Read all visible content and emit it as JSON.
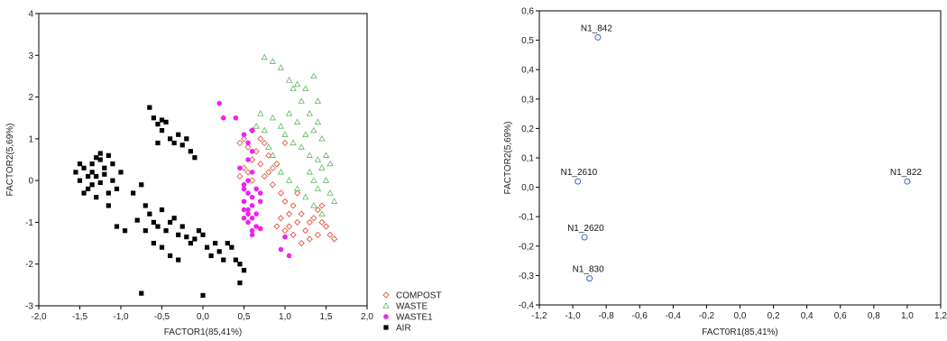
{
  "chart_data": [
    {
      "type": "scatter",
      "xlabel": "FACTOR1(85,41%)",
      "ylabel": "FACTOR2(5,69%)",
      "xlim": [
        -2.0,
        2.0
      ],
      "ylim": [
        -3,
        4
      ],
      "xticks": [
        "-2,0",
        "-1,5",
        "-1,0",
        "-0,5",
        "0,0",
        "0,5",
        "1,0",
        "1,5",
        "2,0"
      ],
      "yticks": [
        "-3",
        "-2",
        "-1",
        "0",
        "1",
        "2",
        "3",
        "4"
      ],
      "legend": {
        "position": "bottom-right-outside"
      },
      "series": [
        {
          "name": "COMPOST",
          "marker": "diamond-open",
          "color": "#e0452e",
          "points": [
            [
              0.45,
              0.9
            ],
            [
              0.5,
              1.0
            ],
            [
              0.55,
              0.8
            ],
            [
              0.6,
              1.2
            ],
            [
              0.65,
              0.7
            ],
            [
              0.7,
              1.0
            ],
            [
              0.75,
              0.9
            ],
            [
              0.8,
              0.6
            ],
            [
              0.5,
              0.3
            ],
            [
              0.55,
              0.2
            ],
            [
              0.6,
              0.5
            ],
            [
              0.7,
              0.4
            ],
            [
              0.8,
              0.2
            ],
            [
              0.85,
              -0.1
            ],
            [
              0.9,
              0.4
            ],
            [
              0.95,
              -0.3
            ],
            [
              1.0,
              -0.5
            ],
            [
              1.05,
              -0.8
            ],
            [
              1.1,
              -0.6
            ],
            [
              1.15,
              -1.0
            ],
            [
              1.2,
              -0.8
            ],
            [
              1.25,
              -1.2
            ],
            [
              1.3,
              -1.4
            ],
            [
              1.35,
              -0.9
            ],
            [
              1.4,
              -0.7
            ],
            [
              1.45,
              -1.0
            ],
            [
              1.5,
              -1.1
            ],
            [
              1.55,
              -1.3
            ],
            [
              1.6,
              -1.4
            ],
            [
              0.9,
              -1.1
            ],
            [
              1.0,
              -1.2
            ],
            [
              1.1,
              -1.3
            ],
            [
              1.2,
              -1.5
            ],
            [
              1.3,
              -1.0
            ],
            [
              1.4,
              -1.3
            ],
            [
              1.45,
              -0.6
            ],
            [
              1.0,
              0.9
            ],
            [
              0.45,
              0.1
            ],
            [
              0.6,
              0.0
            ],
            [
              0.75,
              0.1
            ],
            [
              0.95,
              -0.9
            ],
            [
              1.05,
              -1.1
            ],
            [
              0.85,
              0.3
            ],
            [
              1.15,
              -0.3
            ]
          ]
        },
        {
          "name": "WASTE",
          "marker": "triangle-open",
          "color": "#5fb85f",
          "points": [
            [
              0.75,
              2.95
            ],
            [
              0.85,
              2.85
            ],
            [
              0.95,
              2.7
            ],
            [
              1.05,
              2.4
            ],
            [
              1.1,
              2.2
            ],
            [
              1.15,
              2.3
            ],
            [
              1.25,
              2.2
            ],
            [
              1.35,
              2.5
            ],
            [
              1.4,
              1.9
            ],
            [
              1.2,
              1.9
            ],
            [
              1.3,
              1.6
            ],
            [
              1.4,
              1.4
            ],
            [
              1.05,
              1.6
            ],
            [
              0.95,
              1.3
            ],
            [
              0.85,
              1.5
            ],
            [
              0.75,
              1.2
            ],
            [
              0.7,
              1.6
            ],
            [
              0.65,
              1.3
            ],
            [
              1.0,
              1.1
            ],
            [
              1.1,
              0.9
            ],
            [
              1.2,
              0.8
            ],
            [
              1.3,
              0.6
            ],
            [
              1.4,
              0.5
            ],
            [
              1.45,
              0.3
            ],
            [
              1.5,
              0.0
            ],
            [
              1.55,
              -0.3
            ],
            [
              1.6,
              -0.5
            ],
            [
              1.45,
              -0.8
            ],
            [
              1.35,
              -0.6
            ],
            [
              1.25,
              -0.4
            ],
            [
              1.15,
              -0.2
            ],
            [
              1.05,
              0.0
            ],
            [
              0.95,
              0.2
            ],
            [
              0.85,
              0.6
            ],
            [
              0.8,
              0.8
            ],
            [
              1.3,
              0.2
            ],
            [
              1.35,
              0.0
            ],
            [
              1.4,
              -0.2
            ],
            [
              1.5,
              0.6
            ],
            [
              1.55,
              0.4
            ],
            [
              1.25,
              1.1
            ],
            [
              1.15,
              1.4
            ],
            [
              1.45,
              1.0
            ],
            [
              1.35,
              1.2
            ]
          ]
        },
        {
          "name": "WASTE1",
          "marker": "circle-filled",
          "color": "#ee22ee",
          "points": [
            [
              0.2,
              1.85
            ],
            [
              0.25,
              1.5
            ],
            [
              0.4,
              1.5
            ],
            [
              0.6,
              1.2
            ],
            [
              0.5,
              1.1
            ],
            [
              0.55,
              0.9
            ],
            [
              0.6,
              0.7
            ],
            [
              0.55,
              0.5
            ],
            [
              0.6,
              0.2
            ],
            [
              0.55,
              0.0
            ],
            [
              0.5,
              -0.2
            ],
            [
              0.55,
              -0.3
            ],
            [
              0.6,
              -0.4
            ],
            [
              0.5,
              -0.5
            ],
            [
              0.6,
              -0.6
            ],
            [
              0.55,
              -0.7
            ],
            [
              0.65,
              -0.8
            ],
            [
              0.6,
              -0.9
            ],
            [
              0.5,
              -0.9
            ],
            [
              0.55,
              -1.0
            ],
            [
              0.65,
              -1.1
            ],
            [
              0.7,
              -1.15
            ],
            [
              0.6,
              -1.2
            ],
            [
              0.7,
              -0.5
            ],
            [
              0.5,
              -0.1
            ],
            [
              0.65,
              -0.2
            ],
            [
              0.7,
              -0.3
            ],
            [
              0.45,
              0.3
            ],
            [
              0.55,
              -0.8
            ],
            [
              0.6,
              -1.3
            ],
            [
              0.5,
              -0.7
            ],
            [
              0.95,
              -1.65
            ],
            [
              1.0,
              -1.35
            ],
            [
              1.05,
              -1.8
            ]
          ]
        },
        {
          "name": "AIR",
          "marker": "square-filled",
          "color": "#000000",
          "points": [
            [
              -1.55,
              0.2
            ],
            [
              -1.5,
              0.0
            ],
            [
              -1.45,
              0.3
            ],
            [
              -1.4,
              -0.2
            ],
            [
              -1.35,
              0.4
            ],
            [
              -1.3,
              0.1
            ],
            [
              -1.25,
              0.5
            ],
            [
              -1.2,
              0.3
            ],
            [
              -1.15,
              0.6
            ],
            [
              -1.1,
              0.0
            ],
            [
              -1.05,
              -0.2
            ],
            [
              -1.0,
              0.2
            ],
            [
              -1.25,
              0.65
            ],
            [
              -1.3,
              0.55
            ],
            [
              -1.2,
              0.15
            ],
            [
              -1.35,
              -0.1
            ],
            [
              -1.45,
              -0.3
            ],
            [
              -1.3,
              -0.4
            ],
            [
              -1.15,
              -0.3
            ],
            [
              -1.4,
              0.1
            ],
            [
              -1.5,
              0.4
            ],
            [
              -1.35,
              0.2
            ],
            [
              -1.25,
              -0.05
            ],
            [
              -1.1,
              0.4
            ],
            [
              -1.15,
              -0.6
            ],
            [
              -1.05,
              -1.1
            ],
            [
              -0.95,
              -1.2
            ],
            [
              -0.85,
              -0.3
            ],
            [
              -0.75,
              -0.1
            ],
            [
              -0.7,
              -0.6
            ],
            [
              -0.65,
              -0.8
            ],
            [
              -0.6,
              -1.0
            ],
            [
              -0.55,
              -1.1
            ],
            [
              -0.5,
              -0.7
            ],
            [
              -0.45,
              -1.2
            ],
            [
              -0.4,
              -1.0
            ],
            [
              -0.35,
              -0.9
            ],
            [
              -0.3,
              -1.3
            ],
            [
              -0.25,
              -1.1
            ],
            [
              -0.2,
              -1.35
            ],
            [
              -0.15,
              -1.5
            ],
            [
              -0.1,
              -1.4
            ],
            [
              -0.05,
              -1.2
            ],
            [
              0.0,
              -1.3
            ],
            [
              0.05,
              -1.6
            ],
            [
              0.1,
              -1.8
            ],
            [
              0.15,
              -1.5
            ],
            [
              0.2,
              -1.7
            ],
            [
              0.25,
              -1.9
            ],
            [
              0.3,
              -1.5
            ],
            [
              0.35,
              -1.6
            ],
            [
              0.4,
              -1.9
            ],
            [
              0.45,
              -2.0
            ],
            [
              0.5,
              -2.15
            ],
            [
              0.45,
              -2.45
            ],
            [
              -0.6,
              -1.5
            ],
            [
              -0.5,
              -1.6
            ],
            [
              -0.4,
              -1.8
            ],
            [
              -0.3,
              -1.9
            ],
            [
              -0.7,
              -1.2
            ],
            [
              -0.8,
              -0.95
            ],
            [
              -0.65,
              1.75
            ],
            [
              -0.6,
              1.5
            ],
            [
              -0.55,
              1.35
            ],
            [
              -0.5,
              1.45
            ],
            [
              -0.45,
              1.4
            ],
            [
              -0.4,
              1.0
            ],
            [
              -0.35,
              0.9
            ],
            [
              -0.3,
              1.1
            ],
            [
              -0.25,
              0.85
            ],
            [
              -0.2,
              1.0
            ],
            [
              -0.15,
              0.7
            ],
            [
              -0.1,
              0.55
            ],
            [
              -0.55,
              0.9
            ],
            [
              -0.5,
              1.2
            ],
            [
              -0.75,
              -2.7
            ],
            [
              0.0,
              -2.75
            ]
          ]
        }
      ]
    },
    {
      "type": "scatter",
      "xlabel": "FACT0R1(85,41%)",
      "ylabel": "FACTOR2(5,69%)",
      "xlim": [
        -1.2,
        1.2
      ],
      "ylim": [
        -0.4,
        0.6
      ],
      "xticks": [
        "-1,2",
        "-1,0",
        "-0,8",
        "-0,6",
        "-0,4",
        "-0,2",
        "0,0",
        "0,2",
        "0,4",
        "0,6",
        "0,8",
        "1,0",
        "1,2"
      ],
      "yticks": [
        "-0,4",
        "-0,3",
        "-0,2",
        "-0,1",
        "0,0",
        "0,1",
        "0,2",
        "0,3",
        "0,4",
        "0,5",
        "0,6"
      ],
      "marker": "circle-open",
      "color": "#3f5fcf",
      "points": [
        {
          "label": "N1_842",
          "x": -0.85,
          "y": 0.51
        },
        {
          "label": "N1_2610",
          "x": -0.97,
          "y": 0.02
        },
        {
          "label": "N1_2620",
          "x": -0.93,
          "y": -0.17
        },
        {
          "label": "N1_830",
          "x": -0.9,
          "y": -0.31
        },
        {
          "label": "N1_822",
          "x": 1.0,
          "y": 0.02
        }
      ]
    }
  ]
}
